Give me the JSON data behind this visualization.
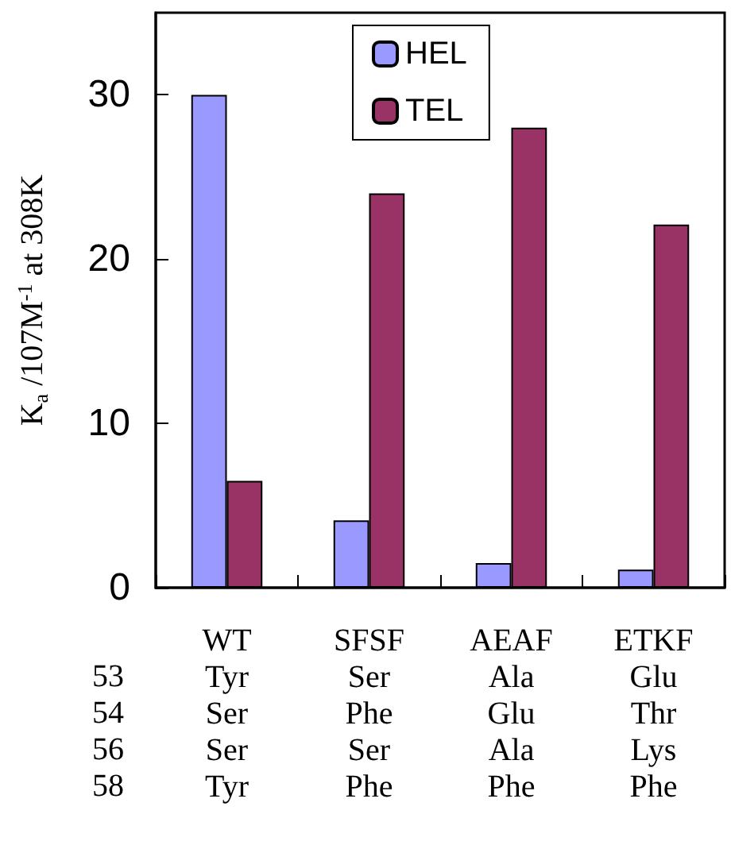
{
  "chart_data": {
    "type": "bar",
    "ylabel": "K$_{a}$ /107M$^{-1}$ at 308K",
    "categories": [
      "WT\nTyr\nSer\nSer\nTyr",
      "SFSF\nSer\nPhe\nSer\nPhe",
      "AEAF\nAla\nGlu\nAla\nPhe",
      "ETKF\nGlu\nThr\nLys\nPhe"
    ],
    "series": [
      {
        "name": "HEL",
        "color": "#9999ff",
        "values": [
          30,
          4.1,
          1.5,
          1.1
        ]
      },
      {
        "name": "TEL",
        "color": "#993366",
        "values": [
          6.5,
          24,
          28,
          22.1
        ]
      }
    ],
    "ylim": [
      0,
      35
    ],
    "yticks": [
      0,
      10,
      20,
      30
    ],
    "grid": false,
    "legend": "top",
    "annotations": [
      "53",
      "54",
      "56",
      "58"
    ]
  }
}
